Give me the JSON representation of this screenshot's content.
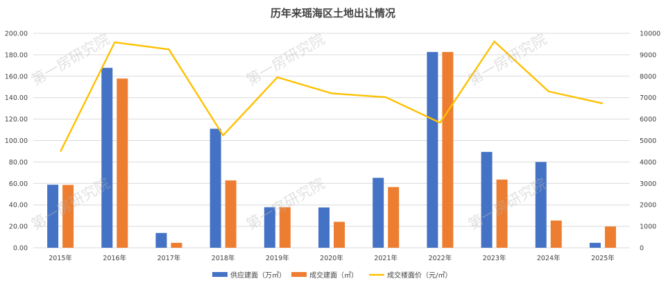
{
  "chart_data": {
    "type": "bar",
    "title": "历年来瑶海区土地出让情况",
    "xlabel": "",
    "ylabel": "",
    "categories": [
      "2015年",
      "2016年",
      "2017年",
      "2018年",
      "2019年",
      "2020年",
      "2021年",
      "2022年",
      "2023年",
      "2024年",
      "2025年"
    ],
    "series": [
      {
        "name": "供应建面（万㎡）",
        "type": "bar",
        "axis": "left",
        "color": "#4472C4",
        "values": [
          58.8,
          167.8,
          13.8,
          111.0,
          37.8,
          37.6,
          65.2,
          182.6,
          89.4,
          80.0,
          4.6
        ]
      },
      {
        "name": "成交建面（㎡）",
        "type": "bar",
        "axis": "left",
        "color": "#ED7D31",
        "values": [
          58.6,
          157.8,
          4.6,
          62.8,
          37.8,
          24.2,
          56.6,
          182.6,
          63.6,
          25.4,
          19.8
        ]
      },
      {
        "name": "成交楼面价（元/㎡）",
        "type": "line",
        "axis": "right",
        "color": "#FFC000",
        "values": [
          4480,
          9580,
          9250,
          5240,
          7950,
          7200,
          7020,
          5830,
          9620,
          7290,
          6730
        ]
      }
    ],
    "ylim": [
      0,
      200
    ],
    "ylim_right": [
      0,
      10000
    ],
    "left_ticks": [
      "0.00",
      "20.00",
      "40.00",
      "60.00",
      "80.00",
      "100.00",
      "120.00",
      "140.00",
      "160.00",
      "180.00",
      "200.00"
    ],
    "right_ticks": [
      "0",
      "1000",
      "2000",
      "3000",
      "4000",
      "5000",
      "6000",
      "7000",
      "8000",
      "9000",
      "10000"
    ],
    "grid": true,
    "legend_position": "bottom",
    "watermark": "第一房研究院"
  }
}
